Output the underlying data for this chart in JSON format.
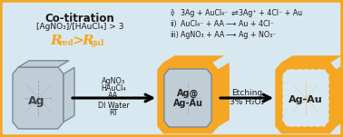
{
  "border_color": "#f5a623",
  "panel_bg": "#d8e8f0",
  "orange_color": "#f5a623",
  "text_dark": "#1a1a1a",
  "gray_face": "#c0cdd6",
  "gray_edge": "#7a8a96",
  "title_text": "Co-titration",
  "subtitle_text": "[AgNO₃]/[HAuCl₄] > 3",
  "eq1_i": "i)",
  "eq1_body": "  3Ag + AuCl₄⁻",
  "eq1_arrow": " ⇌ ",
  "eq1_rhs": "3Ag⁺ + 4Cl⁻ + Au",
  "eq2_i": "ii)",
  "eq2_body": "  AuCl₄⁻ + AA",
  "eq2_arrow": " ⟶ ",
  "eq2_rhs": "Au + 4Cl⁻",
  "eq3_i": "iii)",
  "eq3_body": " AgNO₃ + AA",
  "eq3_arrow": " ⟶ ",
  "eq3_rhs": "Ag + NO₃⁻",
  "cube1_label": "Ag",
  "cube2_label_top": "Ag@",
  "cube2_label_bot": "Ag-Au",
  "cube3_label": "Ag-Au",
  "arrow1_reagents_top": [
    "AgNO₃",
    "HAuCl₄",
    "AA"
  ],
  "arrow1_reagents_bot": [
    "DI Water",
    "RT"
  ],
  "arrow2_label": "Etching",
  "arrow2_sub": "3% H₂O₂",
  "figsize": [
    3.78,
    1.51
  ],
  "dpi": 100
}
